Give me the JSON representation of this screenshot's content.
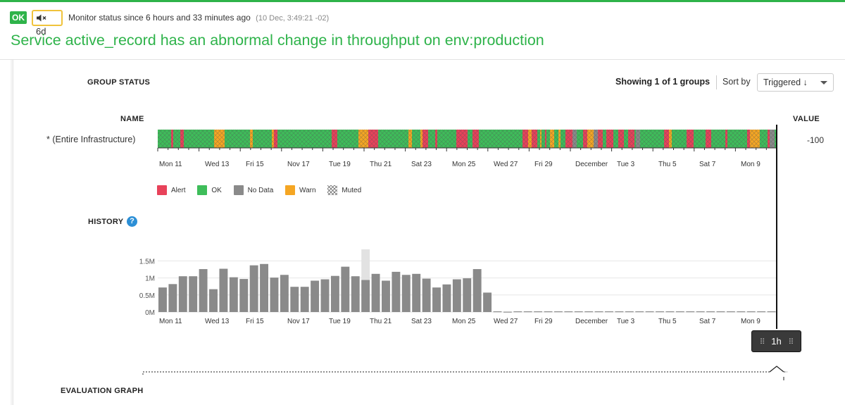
{
  "header": {
    "status_badge": "OK",
    "mute_label": "6d",
    "status_text": "Monitor status since 6 hours and 33 minutes ago",
    "status_timestamp": "(10 Dec, 3:49:21 -02)",
    "title": "Service active_record has an abnormal change in throughput on env:production",
    "accent_color": "#2eb34a"
  },
  "group_status": {
    "label": "GROUP STATUS",
    "showing": "Showing 1 of 1 groups",
    "sort_label": "Sort by",
    "sort_value": "Triggered ↓",
    "name_header": "NAME",
    "value_header": "VALUE",
    "group_name": "* (Entire Infrastructure)",
    "group_value": "-100"
  },
  "axis_labels": [
    "Mon 11",
    "Wed 13",
    "Fri 15",
    "Nov 17",
    "Tue 19",
    "Thu 21",
    "Sat 23",
    "Mon 25",
    "Wed 27",
    "Fri 29",
    "December",
    "Tue 3",
    "Thu 5",
    "Sat 7",
    "Mon 9"
  ],
  "legend": [
    {
      "label": "Alert",
      "color": "#e8425a"
    },
    {
      "label": "OK",
      "color": "#3ebd5a"
    },
    {
      "label": "No Data",
      "color": "#8a8a8a"
    },
    {
      "label": "Warn",
      "color": "#f5a623"
    },
    {
      "label": "Muted",
      "color": "hatch"
    }
  ],
  "history": {
    "label": "HISTORY",
    "help_icon": "question-circle-icon"
  },
  "chart_data": {
    "type": "bar",
    "title": "",
    "xlabel": "",
    "ylabel": "",
    "ylim": [
      0,
      1.7
    ],
    "y_ticks": [
      "0M",
      "0.5M",
      "1M",
      "1.5M"
    ],
    "y_tick_values": [
      0,
      0.5,
      1.0,
      1.5
    ],
    "x_ticks": [
      "Mon 11",
      "Wed 13",
      "Fri 15",
      "Nov 17",
      "Tue 19",
      "Thu 21",
      "Sat 23",
      "Mon 25",
      "Wed 27",
      "Fri 29",
      "December",
      "Tue 3",
      "Thu 5",
      "Sat 7",
      "Mon 9"
    ],
    "values": [
      0.72,
      0.82,
      1.05,
      1.05,
      1.26,
      0.67,
      1.27,
      1.02,
      0.97,
      1.37,
      1.41,
      1.01,
      1.09,
      0.74,
      0.74,
      0.92,
      0.96,
      1.06,
      1.33,
      1.05,
      0.94,
      1.12,
      0.92,
      1.18,
      1.09,
      1.12,
      0.98,
      0.72,
      0.81,
      0.96,
      0.99,
      1.26,
      0.57,
      0.02,
      0.01,
      0.02,
      0.02,
      0.02,
      0.02,
      0.02,
      0.02,
      0.02,
      0.02,
      0.02,
      0.02,
      0.02,
      0.02,
      0.02,
      0.02,
      0.02,
      0.02,
      0.02,
      0.02,
      0.02,
      0.02,
      0.02,
      0.02,
      0.02,
      0.02,
      0.02,
      0.02
    ],
    "highlight_index": 20
  },
  "timespan": {
    "label": "1h"
  },
  "evaluation": {
    "label": "EVALUATION GRAPH"
  }
}
